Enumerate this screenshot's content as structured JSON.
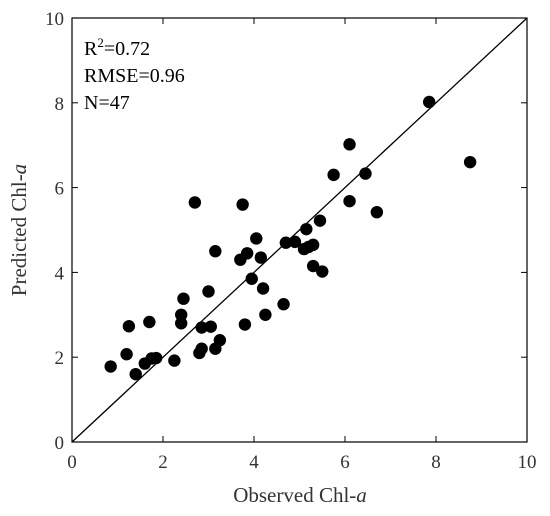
{
  "chart_data": {
    "type": "scatter",
    "title": "",
    "xlabel": "Observed Chl-",
    "xlabel_italic": "a",
    "ylabel": "Predicted Chl-",
    "ylabel_italic": "a",
    "xlim": [
      0,
      10
    ],
    "ylim": [
      0,
      10
    ],
    "xticks": [
      "0",
      "2",
      "4",
      "6",
      "8",
      "10"
    ],
    "yticks": [
      "0",
      "2",
      "4",
      "6",
      "8",
      "10"
    ],
    "grid": false,
    "reference_line": {
      "from": [
        0,
        0
      ],
      "to": [
        10,
        10
      ]
    },
    "annotations": {
      "r2_prefix": "R",
      "r2_sup": "2",
      "r2_value": "=0.72",
      "rmse": "RMSE=0.96",
      "n": "N=47"
    },
    "point_color": "#000000",
    "points": [
      [
        0.85,
        1.78
      ],
      [
        1.2,
        2.07
      ],
      [
        1.25,
        2.73
      ],
      [
        1.4,
        1.6
      ],
      [
        1.6,
        1.85
      ],
      [
        1.7,
        2.83
      ],
      [
        1.75,
        1.97
      ],
      [
        1.85,
        1.98
      ],
      [
        2.25,
        1.92
      ],
      [
        2.4,
        3.0
      ],
      [
        2.4,
        2.8
      ],
      [
        2.45,
        3.38
      ],
      [
        2.7,
        5.65
      ],
      [
        2.8,
        2.1
      ],
      [
        2.85,
        2.2
      ],
      [
        2.85,
        2.7
      ],
      [
        3.0,
        3.55
      ],
      [
        3.05,
        2.72
      ],
      [
        3.15,
        2.2
      ],
      [
        3.15,
        4.5
      ],
      [
        3.25,
        2.4
      ],
      [
        3.7,
        4.3
      ],
      [
        3.75,
        5.6
      ],
      [
        3.8,
        2.77
      ],
      [
        3.85,
        4.45
      ],
      [
        3.95,
        3.85
      ],
      [
        4.05,
        4.8
      ],
      [
        4.15,
        4.35
      ],
      [
        4.2,
        3.62
      ],
      [
        4.25,
        3.0
      ],
      [
        4.65,
        3.25
      ],
      [
        4.7,
        4.7
      ],
      [
        4.9,
        4.72
      ],
      [
        5.1,
        4.55
      ],
      [
        5.15,
        5.02
      ],
      [
        5.3,
        4.15
      ],
      [
        5.3,
        4.65
      ],
      [
        5.45,
        5.22
      ],
      [
        5.5,
        4.02
      ],
      [
        5.75,
        6.3
      ],
      [
        6.1,
        7.02
      ],
      [
        6.1,
        5.68
      ],
      [
        6.45,
        6.33
      ],
      [
        6.7,
        5.42
      ],
      [
        7.85,
        8.02
      ],
      [
        8.75,
        6.6
      ],
      [
        5.2,
        4.6
      ]
    ]
  }
}
